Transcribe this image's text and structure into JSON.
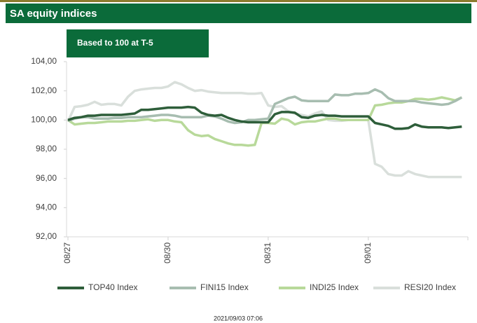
{
  "chart_data": {
    "type": "line",
    "title": "SA equity indices",
    "subtitle": "Based to 100 at T-5",
    "timestamp": "2021/09/03 07:06",
    "categories": [
      "08/27",
      null,
      null,
      null,
      null,
      null,
      null,
      null,
      null,
      null,
      null,
      null,
      null,
      null,
      null,
      "08/30",
      null,
      null,
      null,
      null,
      null,
      null,
      null,
      null,
      null,
      null,
      null,
      null,
      null,
      null,
      "08/31",
      null,
      null,
      null,
      null,
      null,
      null,
      null,
      null,
      null,
      null,
      null,
      null,
      null,
      null,
      "09/01",
      null,
      null,
      null,
      null,
      null,
      null,
      null,
      null,
      null,
      null,
      null,
      null,
      null,
      null
    ],
    "ylim": [
      92,
      104
    ],
    "yticks": [
      {
        "value": 92,
        "label": "92,00"
      },
      {
        "value": 94,
        "label": "94,00"
      },
      {
        "value": 96,
        "label": "96,00"
      },
      {
        "value": 98,
        "label": "98,00"
      },
      {
        "value": 100,
        "label": "100,00"
      },
      {
        "value": 102,
        "label": "102,00"
      },
      {
        "value": 104,
        "label": "104,00"
      }
    ],
    "series": [
      {
        "name": "TOP40 Index",
        "color": "#2e5e3a",
        "values": [
          100.0,
          100.15,
          100.2,
          100.3,
          100.3,
          100.35,
          100.35,
          100.35,
          100.35,
          100.4,
          100.45,
          100.7,
          100.7,
          100.75,
          100.8,
          100.85,
          100.85,
          100.85,
          100.9,
          100.85,
          100.5,
          100.35,
          100.3,
          100.35,
          100.15,
          100.0,
          99.9,
          99.85,
          99.85,
          99.85,
          99.85,
          100.4,
          100.55,
          100.55,
          100.5,
          100.2,
          100.15,
          100.3,
          100.35,
          100.3,
          100.3,
          100.25,
          100.25,
          100.25,
          100.25,
          100.25,
          99.8,
          99.7,
          99.6,
          99.4,
          99.4,
          99.45,
          99.7,
          99.55,
          99.5,
          99.5,
          99.5,
          99.45,
          99.5,
          99.55
        ]
      },
      {
        "name": "FINI15 Index",
        "color": "#a7bdb0",
        "values": [
          99.95,
          100.1,
          100.2,
          100.2,
          100.1,
          100.1,
          100.1,
          100.15,
          100.15,
          100.2,
          100.2,
          100.2,
          100.25,
          100.3,
          100.35,
          100.35,
          100.3,
          100.2,
          100.2,
          100.2,
          100.2,
          100.3,
          100.25,
          100.1,
          99.9,
          99.8,
          99.85,
          100.0,
          100.0,
          100.05,
          100.1,
          101.1,
          101.3,
          101.5,
          101.6,
          101.35,
          101.3,
          101.3,
          101.3,
          101.3,
          101.75,
          101.7,
          101.7,
          101.8,
          101.8,
          101.85,
          102.1,
          101.9,
          101.5,
          101.3,
          101.3,
          101.3,
          101.3,
          101.2,
          101.15,
          101.1,
          101.05,
          101.1,
          101.3,
          101.55
        ]
      },
      {
        "name": "INDI25 Index",
        "color": "#b8d99a",
        "values": [
          100.0,
          99.7,
          99.75,
          99.8,
          99.8,
          99.85,
          99.9,
          99.9,
          99.9,
          99.95,
          99.95,
          100.0,
          100.05,
          99.95,
          100.0,
          100.0,
          99.9,
          99.85,
          99.3,
          99.0,
          98.9,
          98.95,
          98.7,
          98.55,
          98.4,
          98.3,
          98.3,
          98.25,
          98.3,
          99.8,
          99.8,
          99.75,
          100.1,
          100.0,
          99.7,
          99.85,
          99.9,
          99.9,
          100.0,
          100.1,
          100.1,
          100.0,
          100.0,
          100.0,
          100.0,
          100.0,
          101.0,
          101.05,
          101.15,
          101.2,
          101.2,
          101.3,
          101.45,
          101.45,
          101.4,
          101.45,
          101.55,
          101.45,
          101.35,
          101.55
        ]
      },
      {
        "name": "RESI20 Index",
        "color": "#d9dfdb",
        "values": [
          99.9,
          100.9,
          100.95,
          101.05,
          101.25,
          101.05,
          101.1,
          101.1,
          101.0,
          101.6,
          102.0,
          102.1,
          102.15,
          102.2,
          102.2,
          102.3,
          102.6,
          102.45,
          102.2,
          102.0,
          102.05,
          101.95,
          101.9,
          101.85,
          101.85,
          101.85,
          101.85,
          101.8,
          101.8,
          101.85,
          101.0,
          100.9,
          100.95,
          100.6,
          100.45,
          100.35,
          100.25,
          100.45,
          100.6,
          100.0,
          99.95,
          99.95,
          100.0,
          100.0,
          100.0,
          100.0,
          97.0,
          96.8,
          96.3,
          96.2,
          96.2,
          96.5,
          96.3,
          96.2,
          96.1,
          96.1,
          96.1,
          96.1,
          96.1,
          96.1
        ]
      }
    ]
  }
}
